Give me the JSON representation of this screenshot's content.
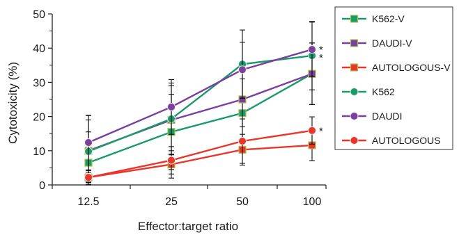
{
  "chart_data": {
    "type": "line",
    "title": "",
    "xlabel": "Effector:target ratio",
    "ylabel": "Cytotoxicity (%)",
    "categories": [
      "12.5",
      "25",
      "50",
      "100"
    ],
    "ylim": [
      0,
      50
    ],
    "yticks": [
      "0",
      "10",
      "20",
      "30",
      "40",
      "50"
    ],
    "grid": false,
    "legend_position": "right",
    "series": [
      {
        "name": "K562-V",
        "color": "#1a9a6a",
        "marker": "square",
        "values": [
          6.5,
          15.5,
          21,
          32.5
        ],
        "errors": [
          9,
          11,
          10,
          9
        ]
      },
      {
        "name": "DAUDI-V",
        "color": "#7b3f9e",
        "marker": "square",
        "values": [
          10,
          19,
          25,
          32.5
        ],
        "errors": [
          9,
          10,
          8,
          9
        ]
      },
      {
        "name": "AUTOLOGOUS-V",
        "color": "#e8362b",
        "marker": "square",
        "values": [
          2.2,
          6,
          10.3,
          11.6
        ],
        "errors": [
          2,
          4,
          4.5,
          4.5
        ]
      },
      {
        "name": "K562",
        "color": "#1a9a6a",
        "marker": "circle",
        "values": [
          9.8,
          19.3,
          35.3,
          37.8
        ],
        "errors": [
          10.5,
          10.5,
          10,
          10
        ]
      },
      {
        "name": "DAUDI",
        "color": "#7b3f9e",
        "marker": "circle",
        "values": [
          12.4,
          22.8,
          33.7,
          39.6
        ],
        "errors": [
          8,
          8,
          8,
          8
        ]
      },
      {
        "name": "AUTOLOGOUS",
        "color": "#e8362b",
        "marker": "circle",
        "values": [
          2.2,
          7.2,
          12.8,
          15.9
        ],
        "errors": [
          1.5,
          4,
          6.5,
          4
        ]
      }
    ],
    "annotations": [
      {
        "text": "*",
        "x": "100",
        "y": 40.5
      },
      {
        "text": "*",
        "x": "100",
        "y": 38.2
      },
      {
        "text": "*",
        "x": "100",
        "y": 16.8
      }
    ]
  }
}
